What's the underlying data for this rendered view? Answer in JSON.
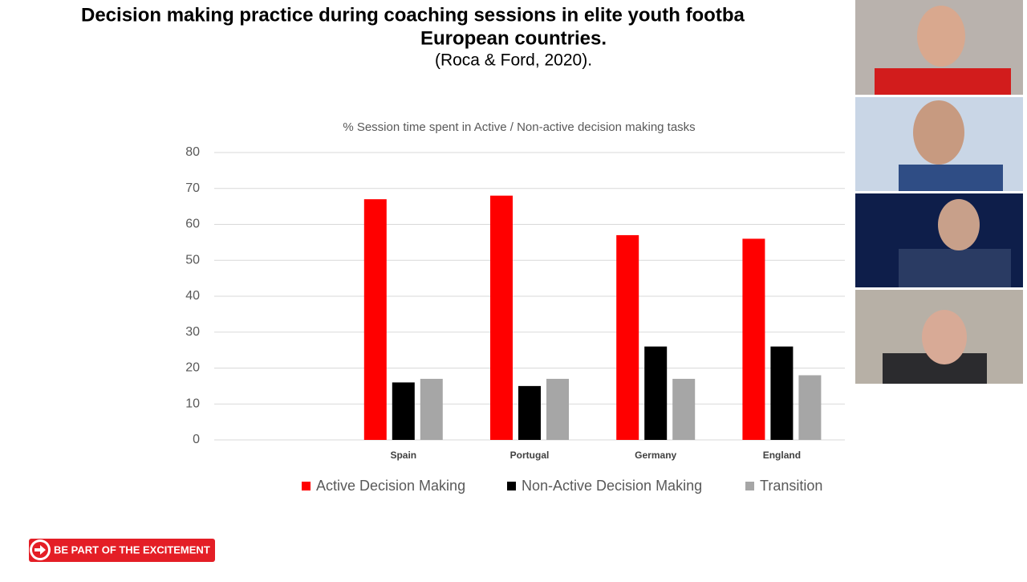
{
  "slide": {
    "title_lines": [
      "Decision making practice during coaching sessions in elite youth footba",
      "European countries."
    ],
    "citation": "(Roca & Ford, 2020).",
    "banner": "BE PART OF THE EXCITEMENT"
  },
  "chart_data": {
    "type": "bar",
    "title": "% Session time spent in Active / Non-active decision making tasks",
    "categories": [
      null,
      "Spain",
      "Portugal",
      "Germany",
      "England"
    ],
    "series": [
      {
        "name": "Active Decision Making",
        "color": "#ff0000",
        "values": [
          null,
          67,
          68,
          57,
          56
        ]
      },
      {
        "name": "Non-Active Decision Making",
        "color": "#000000",
        "values": [
          null,
          16,
          15,
          26,
          26
        ]
      },
      {
        "name": "Transition",
        "color": "#a6a6a6",
        "values": [
          null,
          17,
          17,
          17,
          18
        ]
      }
    ],
    "ylim": [
      0,
      80
    ],
    "yticks": [
      0,
      10,
      20,
      30,
      40,
      50,
      60,
      70,
      80
    ],
    "grid": true,
    "legend": "bottom"
  }
}
